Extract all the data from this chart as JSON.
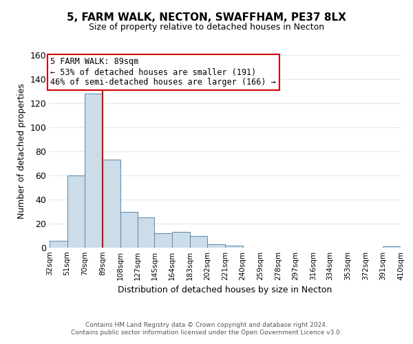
{
  "title": "5, FARM WALK, NECTON, SWAFFHAM, PE37 8LX",
  "subtitle": "Size of property relative to detached houses in Necton",
  "xlabel": "Distribution of detached houses by size in Necton",
  "ylabel": "Number of detached properties",
  "bar_color": "#ccdce8",
  "bar_edge_color": "#5588aa",
  "background_color": "#ffffff",
  "grid_color": "#dde8f0",
  "vline_x": 89,
  "vline_color": "#cc0000",
  "bin_edges": [
    32,
    51,
    70,
    89,
    108,
    127,
    145,
    164,
    183,
    202,
    221,
    240,
    259,
    278,
    297,
    316,
    334,
    353,
    372,
    391,
    410
  ],
  "bin_labels": [
    "32sqm",
    "51sqm",
    "70sqm",
    "89sqm",
    "108sqm",
    "127sqm",
    "145sqm",
    "164sqm",
    "183sqm",
    "202sqm",
    "221sqm",
    "240sqm",
    "259sqm",
    "278sqm",
    "297sqm",
    "316sqm",
    "334sqm",
    "353sqm",
    "372sqm",
    "391sqm",
    "410sqm"
  ],
  "counts": [
    6,
    60,
    128,
    73,
    30,
    25,
    12,
    13,
    10,
    3,
    2,
    0,
    0,
    0,
    0,
    0,
    0,
    0,
    0,
    1
  ],
  "ylim": [
    0,
    160
  ],
  "yticks": [
    0,
    20,
    40,
    60,
    80,
    100,
    120,
    140,
    160
  ],
  "annotation_title": "5 FARM WALK: 89sqm",
  "annotation_line1": "← 53% of detached houses are smaller (191)",
  "annotation_line2": "46% of semi-detached houses are larger (166) →",
  "annotation_box_color": "#ffffff",
  "annotation_box_edge": "#cc0000",
  "footer_line1": "Contains HM Land Registry data © Crown copyright and database right 2024.",
  "footer_line2": "Contains public sector information licensed under the Open Government Licence v3.0."
}
